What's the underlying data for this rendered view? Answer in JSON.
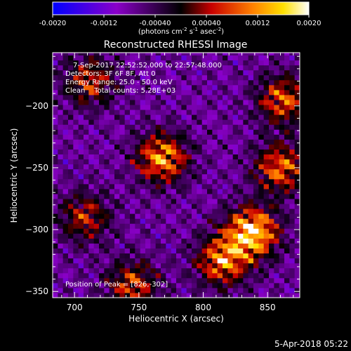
{
  "colorbar": {
    "ticks": [
      "-0.0020",
      "-0.0012",
      "-0.00040",
      "0.00040",
      "0.0012",
      "0.0020"
    ],
    "tick_values": [
      -0.002,
      -0.0012,
      -0.0004,
      0.0004,
      0.0012,
      0.002
    ],
    "range": [
      -0.002,
      0.002
    ],
    "unit_main": "(photons cm",
    "unit_exp1": "-2",
    "unit_mid": " s",
    "unit_exp2": "-1",
    "unit_end": " asec",
    "unit_exp3": "-2",
    "unit_close": ")",
    "colors": [
      "#0000ff",
      "#8a00c8",
      "#000000",
      "#c80000",
      "#ff8000",
      "#ffe000",
      "#ffffff"
    ]
  },
  "chart_data": {
    "type": "heatmap",
    "title": "Reconstructed RHESSI Image",
    "xlabel": "Heliocentric X (arcsec)",
    "ylabel": "Heliocentric Y (arcsec)",
    "xlim": [
      683,
      875
    ],
    "ylim": [
      -355,
      -157
    ],
    "xticks": [
      700,
      750,
      800,
      850
    ],
    "yticks": [
      -200,
      -250,
      -300,
      -350
    ],
    "peak": {
      "label": "Position of Peak = [826,-302]",
      "x": 826,
      "y": -302
    },
    "annotations": [
      "7-Sep-2017 22:52:52.000 to 22:57:48.000",
      "Detectors: 3F 6F 8F, Att 0",
      "Energy Range: 25.0 - 50.0 keV",
      "Clean    Total counts: 5.28E+03"
    ],
    "sources": [
      {
        "x": 768,
        "y": -242,
        "intensity": 0.0014
      },
      {
        "x": 838,
        "y": -302,
        "intensity": 0.002
      },
      {
        "x": 815,
        "y": -325,
        "intensity": 0.0013
      },
      {
        "x": 860,
        "y": -250,
        "intensity": 0.0011
      },
      {
        "x": 862,
        "y": -195,
        "intensity": 0.001
      },
      {
        "x": 712,
        "y": -180,
        "intensity": 0.0007
      },
      {
        "x": 708,
        "y": -290,
        "intensity": 0.0006
      },
      {
        "x": 745,
        "y": -345,
        "intensity": 0.0008
      }
    ]
  },
  "footer": {
    "timestamp": "5-Apr-2018 05:22"
  }
}
